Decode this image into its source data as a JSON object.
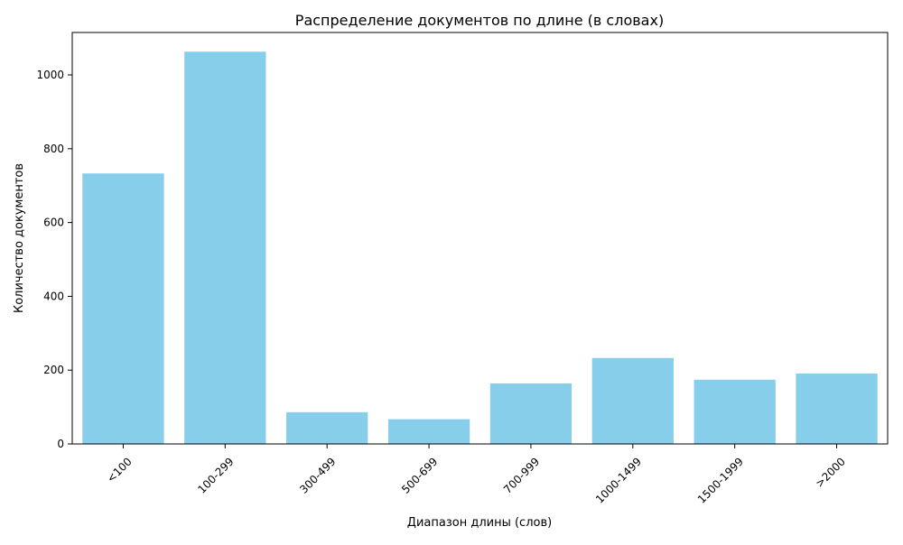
{
  "chart_data": {
    "type": "bar",
    "title": "Распределение документов по длине (в словах)",
    "xlabel": "Диапазон длины (слов)",
    "ylabel": "Количество документов",
    "categories": [
      "<100",
      "100-299",
      "300-499",
      "500-699",
      "700-999",
      "1000-1499",
      "1500-1999",
      ">2000"
    ],
    "values": [
      733,
      1063,
      86,
      67,
      164,
      233,
      174,
      191
    ],
    "ylim": [
      0,
      1115
    ],
    "yticks": [
      0,
      200,
      400,
      600,
      800,
      1000
    ],
    "bar_color": "#87ceeb",
    "grid": false,
    "legend": "none"
  }
}
